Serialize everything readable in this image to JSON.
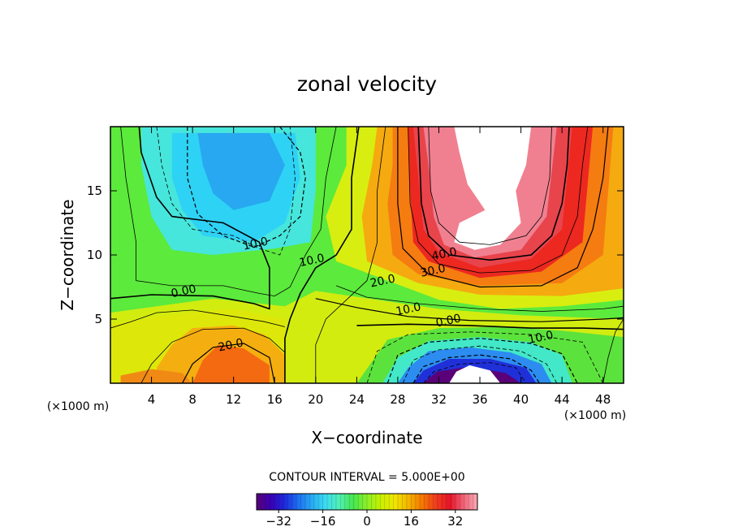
{
  "chart_data": {
    "type": "heatmap",
    "title": "zonal velocity",
    "xlabel": "X−coordinate",
    "ylabel": "Z−coordinate",
    "x_unit": "(×1000 m)",
    "y_unit": "(×1000 m)",
    "xlim": [
      0,
      50
    ],
    "ylim": [
      0,
      20
    ],
    "x_ticks": [
      4,
      8,
      12,
      16,
      20,
      24,
      28,
      32,
      36,
      40,
      44,
      48
    ],
    "y_ticks": [
      5,
      10,
      15
    ],
    "contour_interval_text": "CONTOUR INTERVAL = 5.000E+00",
    "colorbar": {
      "range": [
        -40,
        40
      ],
      "ticks": [
        -32,
        -16,
        0,
        16,
        32
      ],
      "colors": [
        "#5a0078",
        "#3a00b4",
        "#1e28dc",
        "#1e6ef0",
        "#28aaf5",
        "#3cdcf0",
        "#50f0b4",
        "#46e650",
        "#8cf028",
        "#c8f000",
        "#f0e600",
        "#f5b400",
        "#f57800",
        "#f03c1e",
        "#e61428",
        "#f06478",
        "#f8aab4"
      ]
    },
    "contour_labels": [
      {
        "text": "10.0",
        "x": 14.2,
        "y": 10.6
      },
      {
        "text": "10.0",
        "x": 19.7,
        "y": 9.3
      },
      {
        "text": "0.00",
        "x": 7.2,
        "y": 6.9
      },
      {
        "text": "20.0",
        "x": 26.6,
        "y": 7.7
      },
      {
        "text": "30.0",
        "x": 31.5,
        "y": 8.5
      },
      {
        "text": "40.0",
        "x": 32.6,
        "y": 9.8
      },
      {
        "text": "10.0",
        "x": 29.1,
        "y": 5.5
      },
      {
        "text": "0.00",
        "x": 33.0,
        "y": 4.6
      },
      {
        "text": "10.0",
        "x": 42.0,
        "y": 3.3
      },
      {
        "text": "20.0",
        "x": 11.8,
        "y": 2.7
      }
    ]
  }
}
